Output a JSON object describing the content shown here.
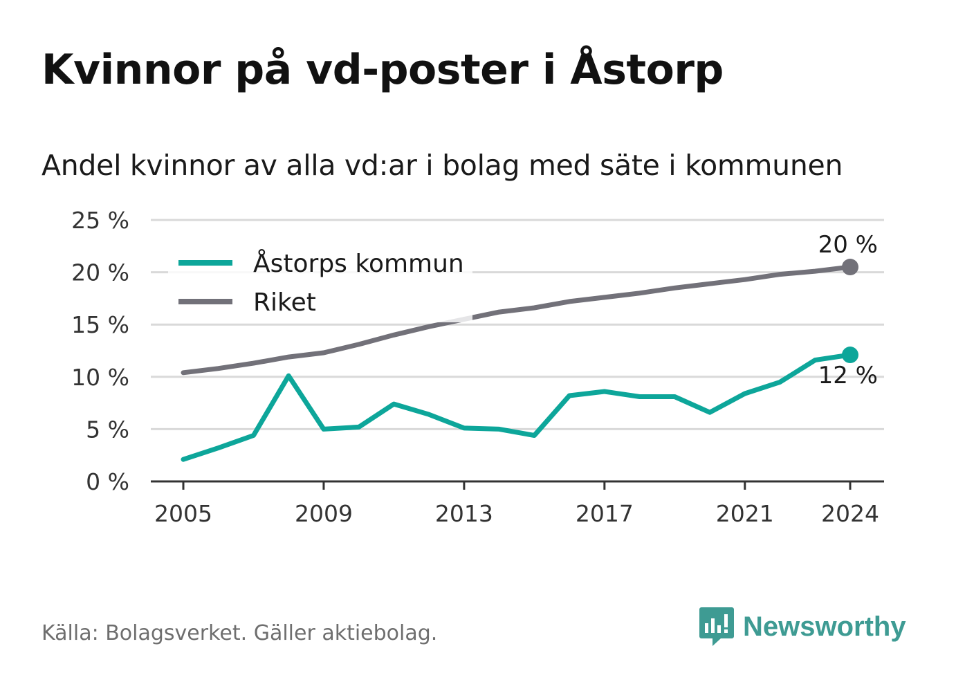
{
  "title": "Kvinnor på vd-poster i Åstorp",
  "subtitle": "Andel kvinnor av alla vd:ar i bolag med säte i kommunen",
  "source": "Källa: Bolagsverket. Gäller aktiebolag.",
  "brand": "Newsworthy",
  "colors": {
    "astorp": "#0da69a",
    "riket": "#727179",
    "grid": "#d9d9d9",
    "axis": "#333333",
    "brand": "#3e9b93"
  },
  "chart_data": {
    "type": "line",
    "ylim": [
      0,
      25
    ],
    "xlim": [
      2005,
      2024
    ],
    "y_ticks": [
      0,
      5,
      10,
      15,
      20,
      25
    ],
    "y_tick_labels": [
      "0 %",
      "5 %",
      "10 %",
      "15 %",
      "20 %",
      "25 %"
    ],
    "x_ticks": [
      2005,
      2009,
      2013,
      2017,
      2021,
      2024
    ],
    "x_tick_labels": [
      "2005",
      "2009",
      "2013",
      "2017",
      "2021",
      "2024"
    ],
    "grid": true,
    "legend_placement": "top-left",
    "x": [
      2005,
      2006,
      2007,
      2008,
      2009,
      2010,
      2011,
      2012,
      2013,
      2014,
      2015,
      2016,
      2017,
      2018,
      2019,
      2020,
      2021,
      2022,
      2023,
      2024
    ],
    "series": [
      {
        "name": "Åstorps kommun",
        "color": "#0da69a",
        "end_label": "12 %",
        "values": [
          2.1,
          3.2,
          4.4,
          10.1,
          5.0,
          5.2,
          7.4,
          6.4,
          5.1,
          5.0,
          4.4,
          8.2,
          8.6,
          8.1,
          8.1,
          6.6,
          8.4,
          9.5,
          11.6,
          12.1
        ]
      },
      {
        "name": "Riket",
        "color": "#727179",
        "end_label": "20 %",
        "values": [
          10.4,
          10.8,
          11.3,
          11.9,
          12.3,
          13.1,
          14.0,
          14.8,
          15.5,
          16.2,
          16.6,
          17.2,
          17.6,
          18.0,
          18.5,
          18.9,
          19.3,
          19.8,
          20.1,
          20.5
        ]
      }
    ]
  }
}
